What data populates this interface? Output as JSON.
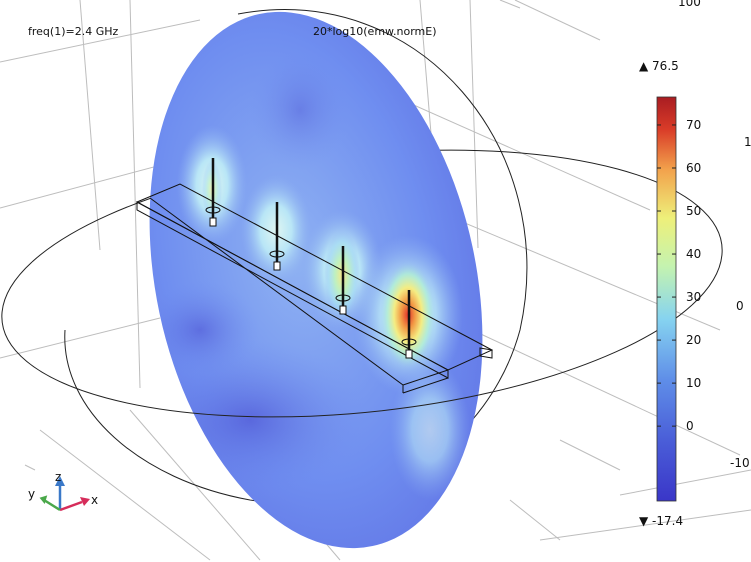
{
  "plot": {
    "param_label": "freq(1)=2.4 GHz",
    "expression_label": "20*log10(emw.normE)"
  },
  "colorbar": {
    "max_label": "▲ 76.5",
    "min_label": "▼ -17.4",
    "ticks": [
      "70",
      "60",
      "50",
      "40",
      "30",
      "20",
      "10",
      "0"
    ],
    "tick_values": [
      70,
      60,
      50,
      40,
      30,
      20,
      10,
      0
    ],
    "range": [
      -17.4,
      76.5
    ],
    "colormap": [
      "#3b3ad0",
      "#5a78e8",
      "#7ec6ef",
      "#bff2b4",
      "#eef07a",
      "#f3b04c",
      "#d23a26",
      "#b01d22"
    ]
  },
  "grid_axis_labels": {
    "top_cut": "100",
    "right_1": "1",
    "right_0": "0",
    "right_m10": "-10"
  },
  "axes_triad": {
    "x_label": "x",
    "y_label": "y",
    "z_label": "z",
    "x_color": "#d62c5a",
    "y_color": "#4aa84a",
    "z_color": "#3a78c8"
  },
  "antenna": {
    "element_count": 4
  }
}
